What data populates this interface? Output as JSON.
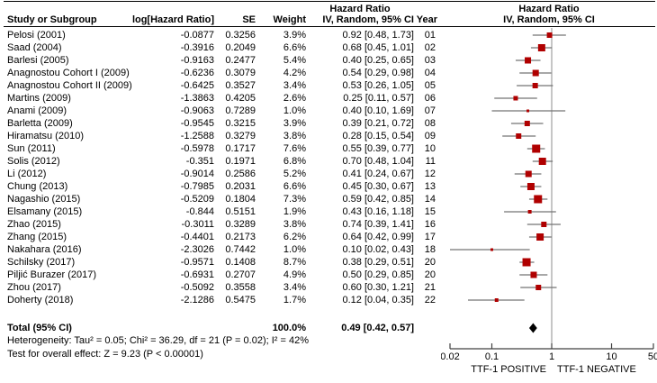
{
  "chart_data": {
    "type": "forest",
    "headers": {
      "study": "Study or Subgroup",
      "log_hr": "log[Hazard Ratio]",
      "se": "SE",
      "weight": "Weight",
      "effect_group": "Hazard Ratio",
      "effect_method": "IV, Random, 95% CI",
      "year": "Year",
      "plot_group": "Hazard Ratio",
      "plot_method": "IV, Random, 95% CI"
    },
    "studies": [
      {
        "name": "Pelosi (2001)",
        "log_hr": "-0.0877",
        "se": "0.3256",
        "weight": "3.9%",
        "ci_text": "0.92 [0.48, 1.73]",
        "year": "01",
        "hr": 0.92,
        "lo": 0.48,
        "hi": 1.73
      },
      {
        "name": "Saad (2004)",
        "log_hr": "-0.3916",
        "se": "0.2049",
        "weight": "6.6%",
        "ci_text": "0.68 [0.45, 1.01]",
        "year": "02",
        "hr": 0.68,
        "lo": 0.45,
        "hi": 1.01
      },
      {
        "name": "Barlesi (2005)",
        "log_hr": "-0.9163",
        "se": "0.2477",
        "weight": "5.4%",
        "ci_text": "0.40 [0.25, 0.65]",
        "year": "03",
        "hr": 0.4,
        "lo": 0.25,
        "hi": 0.65
      },
      {
        "name": "Anagnostou Cohort I (2009)",
        "log_hr": "-0.6236",
        "se": "0.3079",
        "weight": "4.2%",
        "ci_text": "0.54 [0.29, 0.98]",
        "year": "04",
        "hr": 0.54,
        "lo": 0.29,
        "hi": 0.98
      },
      {
        "name": "Anagnostou Cohort II (2009)",
        "log_hr": "-0.6425",
        "se": "0.3527",
        "weight": "3.4%",
        "ci_text": "0.53 [0.26, 1.05]",
        "year": "05",
        "hr": 0.53,
        "lo": 0.26,
        "hi": 1.05
      },
      {
        "name": "Martins (2009)",
        "log_hr": "-1.3863",
        "se": "0.4205",
        "weight": "2.6%",
        "ci_text": "0.25 [0.11, 0.57]",
        "year": "06",
        "hr": 0.25,
        "lo": 0.11,
        "hi": 0.57
      },
      {
        "name": "Anami (2009)",
        "log_hr": "-0.9063",
        "se": "0.7289",
        "weight": "1.0%",
        "ci_text": "0.40 [0.10, 1.69]",
        "year": "07",
        "hr": 0.4,
        "lo": 0.1,
        "hi": 1.69
      },
      {
        "name": "Barletta (2009)",
        "log_hr": "-0.9545",
        "se": "0.3215",
        "weight": "3.9%",
        "ci_text": "0.39 [0.21, 0.72]",
        "year": "08",
        "hr": 0.39,
        "lo": 0.21,
        "hi": 0.72
      },
      {
        "name": "Hiramatsu (2010)",
        "log_hr": "-1.2588",
        "se": "0.3279",
        "weight": "3.8%",
        "ci_text": "0.28 [0.15, 0.54]",
        "year": "09",
        "hr": 0.28,
        "lo": 0.15,
        "hi": 0.54
      },
      {
        "name": "Sun (2011)",
        "log_hr": "-0.5978",
        "se": "0.1717",
        "weight": "7.6%",
        "ci_text": "0.55 [0.39, 0.77]",
        "year": "10",
        "hr": 0.55,
        "lo": 0.39,
        "hi": 0.77
      },
      {
        "name": "Solis (2012)",
        "log_hr": "-0.351",
        "se": "0.1971",
        "weight": "6.8%",
        "ci_text": "0.70 [0.48, 1.04]",
        "year": "11",
        "hr": 0.7,
        "lo": 0.48,
        "hi": 1.04
      },
      {
        "name": "Li (2012)",
        "log_hr": "-0.9014",
        "se": "0.2586",
        "weight": "5.2%",
        "ci_text": "0.41 [0.24, 0.67]",
        "year": "12",
        "hr": 0.41,
        "lo": 0.24,
        "hi": 0.67
      },
      {
        "name": "Chung (2013)",
        "log_hr": "-0.7985",
        "se": "0.2031",
        "weight": "6.6%",
        "ci_text": "0.45 [0.30, 0.67]",
        "year": "13",
        "hr": 0.45,
        "lo": 0.3,
        "hi": 0.67
      },
      {
        "name": "Nagashio (2015)",
        "log_hr": "-0.5209",
        "se": "0.1804",
        "weight": "7.3%",
        "ci_text": "0.59 [0.42, 0.85]",
        "year": "14",
        "hr": 0.59,
        "lo": 0.42,
        "hi": 0.85
      },
      {
        "name": "Elsamany (2015)",
        "log_hr": "-0.844",
        "se": "0.5151",
        "weight": "1.9%",
        "ci_text": "0.43 [0.16, 1.18]",
        "year": "15",
        "hr": 0.43,
        "lo": 0.16,
        "hi": 1.18
      },
      {
        "name": "Zhao (2015)",
        "log_hr": "-0.3011",
        "se": "0.3289",
        "weight": "3.8%",
        "ci_text": "0.74 [0.39, 1.41]",
        "year": "16",
        "hr": 0.74,
        "lo": 0.39,
        "hi": 1.41
      },
      {
        "name": "Zhang (2015)",
        "log_hr": "-0.4401",
        "se": "0.2173",
        "weight": "6.2%",
        "ci_text": "0.64 [0.42, 0.99]",
        "year": "17",
        "hr": 0.64,
        "lo": 0.42,
        "hi": 0.99
      },
      {
        "name": "Nakahara (2016)",
        "log_hr": "-2.3026",
        "se": "0.7442",
        "weight": "1.0%",
        "ci_text": "0.10 [0.02, 0.43]",
        "year": "18",
        "hr": 0.1,
        "lo": 0.02,
        "hi": 0.43
      },
      {
        "name": "Schilsky (2017)",
        "log_hr": "-0.9571",
        "se": "0.1408",
        "weight": "8.7%",
        "ci_text": "0.38 [0.29, 0.51]",
        "year": "20",
        "hr": 0.38,
        "lo": 0.29,
        "hi": 0.51
      },
      {
        "name": "Piljić Burazer (2017)",
        "log_hr": "-0.6931",
        "se": "0.2707",
        "weight": "4.9%",
        "ci_text": "0.50 [0.29, 0.85]",
        "year": "20",
        "hr": 0.5,
        "lo": 0.29,
        "hi": 0.85
      },
      {
        "name": "Zhou (2017)",
        "log_hr": "-0.5092",
        "se": "0.3558",
        "weight": "3.4%",
        "ci_text": "0.60 [0.30, 1.21]",
        "year": "21",
        "hr": 0.6,
        "lo": 0.3,
        "hi": 1.21
      },
      {
        "name": "Doherty (2018)",
        "log_hr": "-2.1286",
        "se": "0.5475",
        "weight": "1.7%",
        "ci_text": "0.12 [0.04, 0.35]",
        "year": "22",
        "hr": 0.12,
        "lo": 0.04,
        "hi": 0.35
      }
    ],
    "total": {
      "label": "Total (95% CI)",
      "weight": "100.0%",
      "ci_text": "0.49 [0.42, 0.57]",
      "hr": 0.49,
      "lo": 0.42,
      "hi": 0.57
    },
    "heterogeneity": "Heterogeneity: Tau² = 0.05; Chi² = 36.29, df = 21 (P = 0.02); I² = 42%",
    "overall_effect": "Test for overall effect: Z = 9.23 (P < 0.00001)",
    "axis": {
      "scale": "log",
      "min": 0.02,
      "max": 50,
      "ticks": [
        0.02,
        0.1,
        1,
        10,
        50
      ],
      "tick_labels": [
        "0.02",
        "0.1",
        "1",
        "10",
        "50"
      ],
      "left_label": "TTF-1 POSITIVE",
      "right_label": "TTF-1 NEGATIVE"
    },
    "colors": {
      "marker": "#b00000",
      "ci_line": "#737373",
      "null_line": "#8c8c8c",
      "axis": "#404040",
      "diamond": "#000000"
    }
  }
}
